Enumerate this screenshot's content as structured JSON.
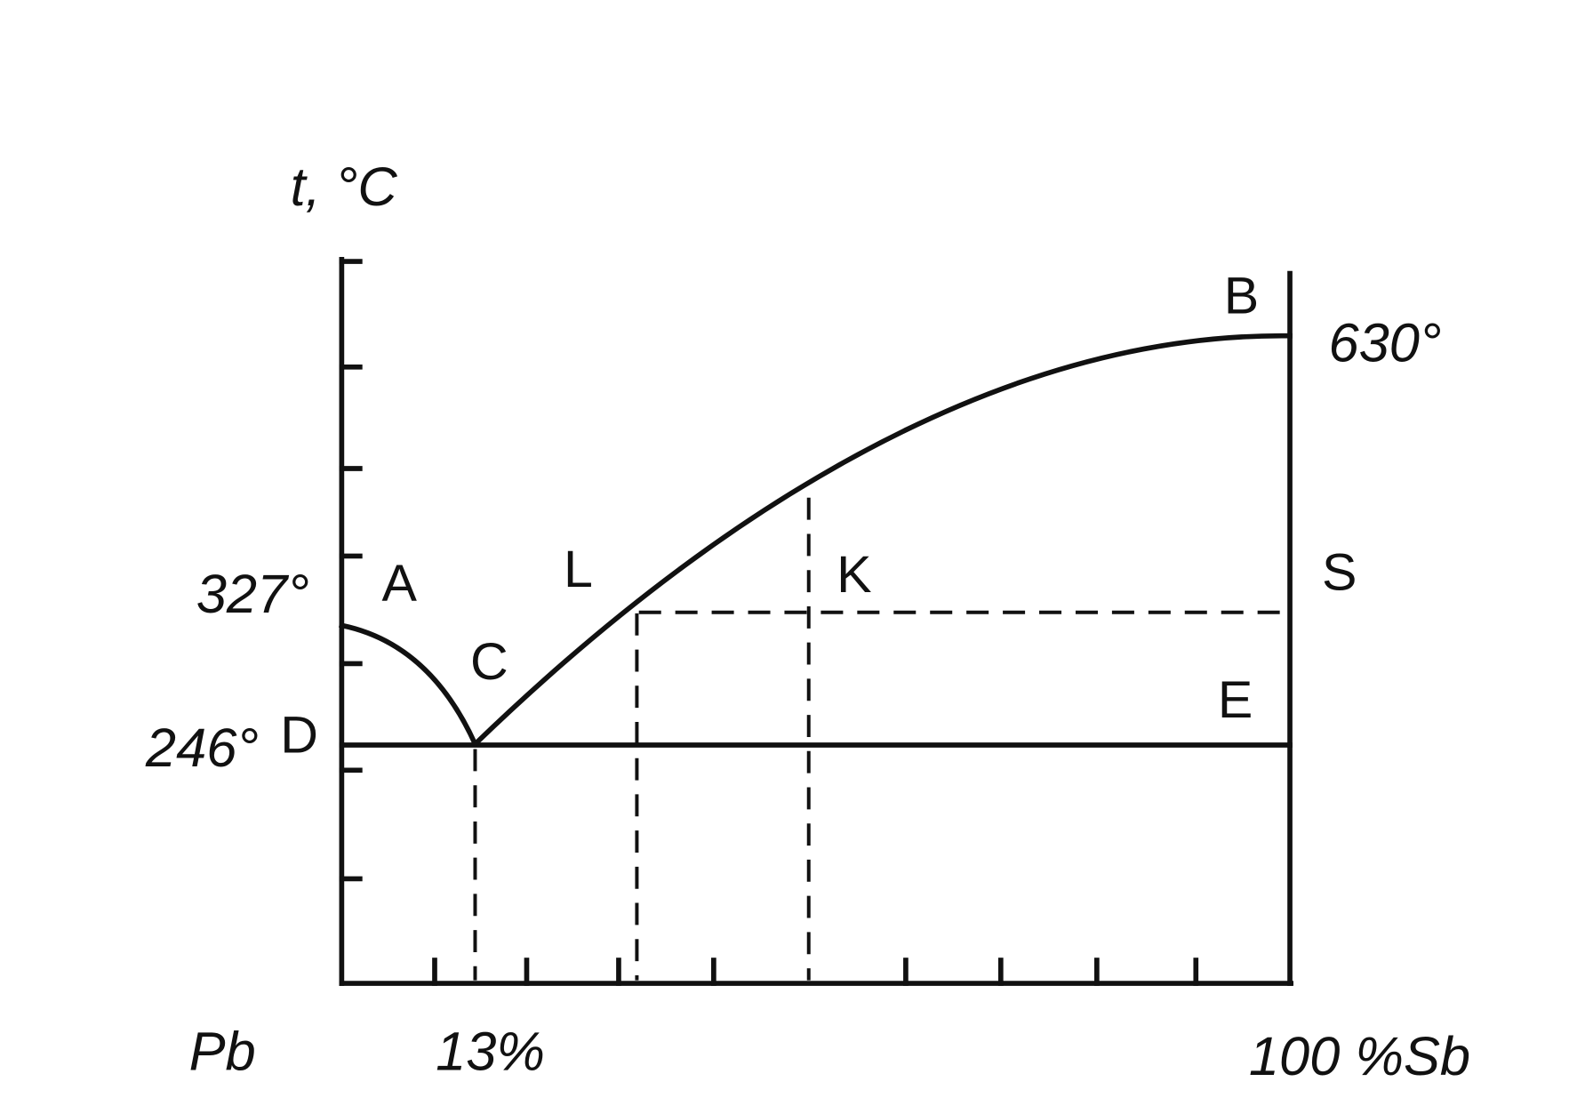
{
  "axis_label": "t, °C",
  "temperatures": {
    "pb_melting": "327°",
    "eutectic": "246°",
    "sb_melting": "630°"
  },
  "composition": {
    "left": "Pb",
    "eutectic": "13%",
    "right": "100 %Sb"
  },
  "points": {
    "A": "A",
    "B": "B",
    "C": "C",
    "D": "D",
    "E": "E",
    "K": "K",
    "L": "L",
    "S": "S"
  }
}
